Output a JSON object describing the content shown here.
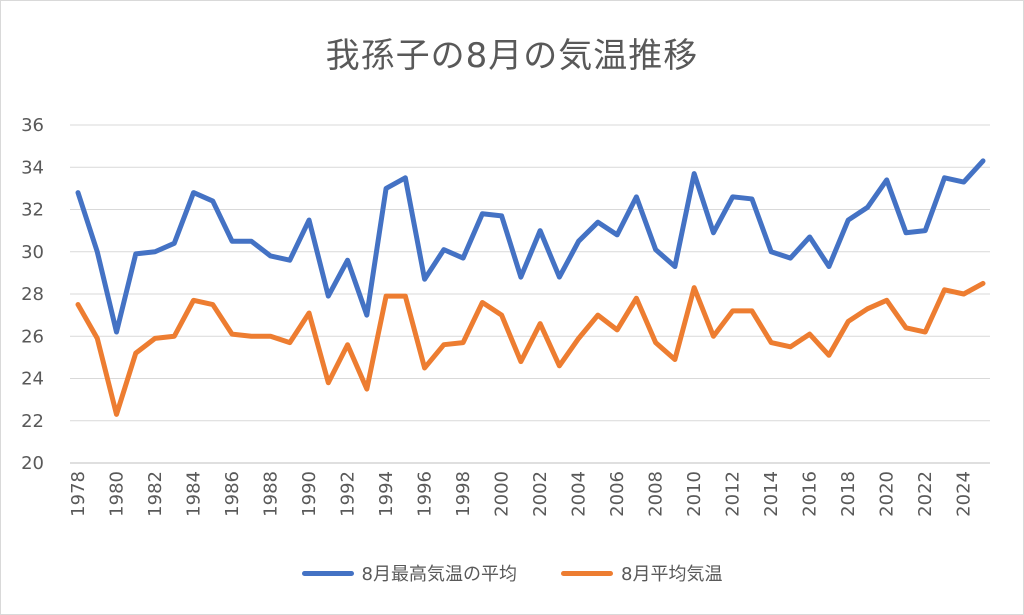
{
  "chart_data": {
    "type": "line",
    "title": "我孫子の8月の気温推移",
    "xlabel": "",
    "ylabel": "",
    "ylim": [
      20,
      36
    ],
    "yticks": [
      20,
      22,
      24,
      26,
      28,
      30,
      32,
      34,
      36
    ],
    "grid": true,
    "legend": "bottom",
    "x": [
      1978,
      1979,
      1980,
      1981,
      1982,
      1983,
      1984,
      1985,
      1986,
      1987,
      1988,
      1989,
      1990,
      1991,
      1992,
      1993,
      1994,
      1995,
      1996,
      1997,
      1998,
      1999,
      2000,
      2001,
      2002,
      2003,
      2004,
      2005,
      2006,
      2007,
      2008,
      2009,
      2010,
      2011,
      2012,
      2013,
      2014,
      2015,
      2016,
      2017,
      2018,
      2019,
      2020,
      2021,
      2022,
      2023,
      2024,
      2025
    ],
    "xtick_labels": [
      "1978",
      "1980",
      "1982",
      "1984",
      "1986",
      "1988",
      "1990",
      "1992",
      "1994",
      "1996",
      "1998",
      "2000",
      "2002",
      "2004",
      "2006",
      "2008",
      "2010",
      "2012",
      "2014",
      "2016",
      "2018",
      "2020",
      "2022",
      "2024"
    ],
    "series": [
      {
        "name": "8月最高気温の平均",
        "color": "#4472c4",
        "values": [
          32.8,
          30.0,
          26.2,
          29.9,
          30.0,
          30.4,
          32.8,
          32.4,
          30.5,
          30.5,
          29.8,
          29.6,
          31.5,
          27.9,
          29.6,
          27.0,
          33.0,
          33.5,
          28.7,
          30.1,
          29.7,
          31.8,
          31.7,
          28.8,
          31.0,
          28.8,
          30.5,
          31.4,
          30.8,
          32.6,
          30.1,
          29.3,
          33.7,
          30.9,
          32.6,
          32.5,
          30.0,
          29.7,
          30.7,
          29.3,
          31.5,
          32.1,
          33.4,
          30.9,
          31.0,
          33.5,
          33.3,
          34.3
        ]
      },
      {
        "name": "8月平均気温",
        "color": "#ed7d31",
        "values": [
          27.5,
          25.9,
          22.3,
          25.2,
          25.9,
          26.0,
          27.7,
          27.5,
          26.1,
          26.0,
          26.0,
          25.7,
          27.1,
          23.8,
          25.6,
          23.5,
          27.9,
          27.9,
          24.5,
          25.6,
          25.7,
          27.6,
          27.0,
          24.8,
          26.6,
          24.6,
          25.9,
          27.0,
          26.3,
          27.8,
          25.7,
          24.9,
          28.3,
          26.0,
          27.2,
          27.2,
          25.7,
          25.5,
          26.1,
          25.1,
          26.7,
          27.3,
          27.7,
          26.4,
          26.2,
          28.2,
          28.0,
          28.5
        ]
      }
    ]
  }
}
